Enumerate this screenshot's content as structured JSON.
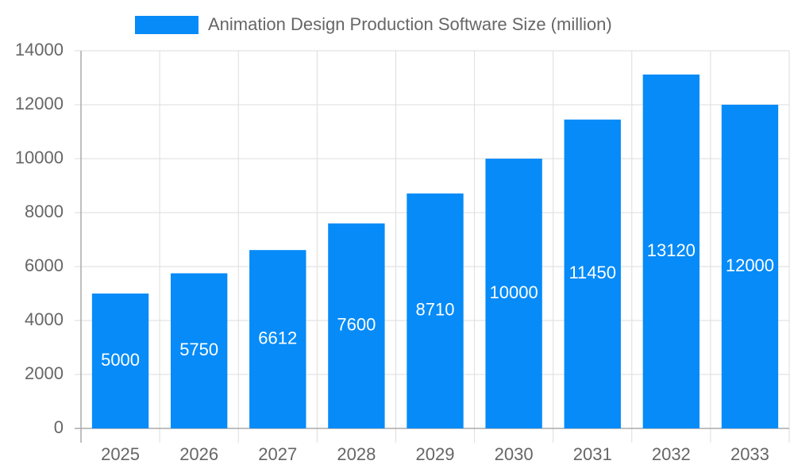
{
  "chart_data": {
    "type": "bar",
    "legend": "Animation Design Production Software Size (million)",
    "categories": [
      "2025",
      "2026",
      "2027",
      "2028",
      "2029",
      "2030",
      "2031",
      "2032",
      "2033"
    ],
    "values": [
      5000,
      5750,
      6612,
      7600,
      8710,
      10000,
      11450,
      13120,
      12000
    ],
    "color": "#068bf8",
    "ylim": [
      0,
      14000
    ],
    "yticks": [
      0,
      2000,
      4000,
      6000,
      8000,
      10000,
      12000,
      14000
    ],
    "grid": true
  }
}
